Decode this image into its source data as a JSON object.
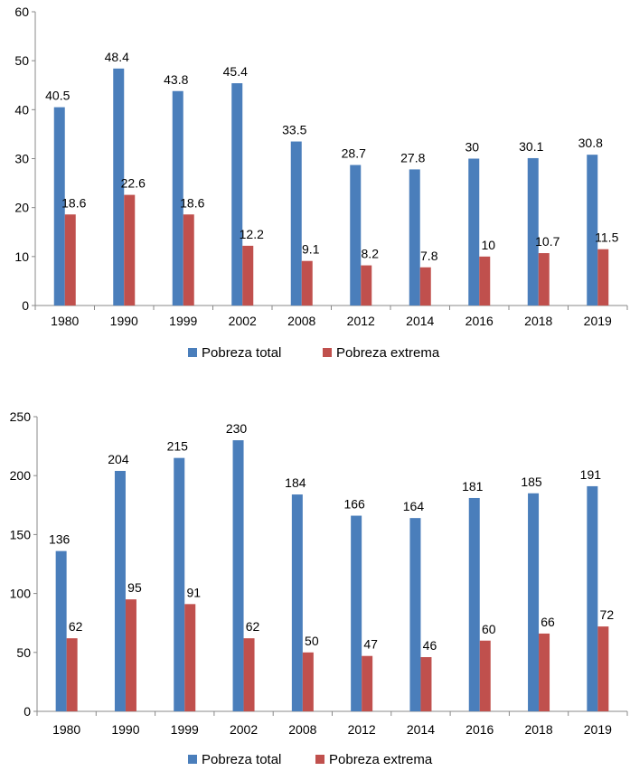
{
  "chart_data": [
    {
      "type": "bar",
      "categories": [
        "1980",
        "1990",
        "1999",
        "2002",
        "2008",
        "2012",
        "2014",
        "2016",
        "2018",
        "2019"
      ],
      "series": [
        {
          "name": "Pobreza total",
          "color": "#4a7ebb",
          "values": [
            40.5,
            48.4,
            43.8,
            45.4,
            33.5,
            28.7,
            27.8,
            30,
            30.1,
            30.8
          ],
          "labels": [
            "40.5",
            "48.4",
            "43.8",
            "45.4",
            "33.5",
            "28.7",
            "27.8",
            "30",
            "30.1",
            "30.8"
          ]
        },
        {
          "name": "Pobreza extrema",
          "color": "#c0504d",
          "values": [
            18.6,
            22.6,
            18.6,
            12.2,
            9.1,
            8.2,
            7.8,
            10,
            10.7,
            11.5
          ],
          "labels": [
            "18.6",
            "22.6",
            "18.6",
            "12.2",
            "9.1",
            "8.2",
            "7.8",
            "10",
            "10.7",
            "11.5"
          ]
        }
      ],
      "ylim": [
        0,
        60
      ],
      "yticks": [
        "0",
        "10",
        "20",
        "30",
        "40",
        "50",
        "60"
      ],
      "legend_position": "bottom"
    },
    {
      "type": "bar",
      "categories": [
        "1980",
        "1990",
        "1999",
        "2002",
        "2008",
        "2012",
        "2014",
        "2016",
        "2018",
        "2019"
      ],
      "series": [
        {
          "name": "Pobreza total",
          "color": "#4a7ebb",
          "values": [
            136,
            204,
            215,
            230,
            184,
            166,
            164,
            181,
            185,
            191
          ],
          "labels": [
            "136",
            "204",
            "215",
            "230",
            "184",
            "166",
            "164",
            "181",
            "185",
            "191"
          ]
        },
        {
          "name": "Pobreza extrema",
          "color": "#c0504d",
          "values": [
            62,
            95,
            91,
            62,
            50,
            47,
            46,
            60,
            66,
            72
          ],
          "labels": [
            "62",
            "95",
            "91",
            "62",
            "50",
            "47",
            "46",
            "60",
            "66",
            "72"
          ]
        }
      ],
      "ylim": [
        0,
        250
      ],
      "yticks": [
        "0",
        "50",
        "100",
        "150",
        "200",
        "250"
      ],
      "legend_position": "bottom"
    }
  ]
}
